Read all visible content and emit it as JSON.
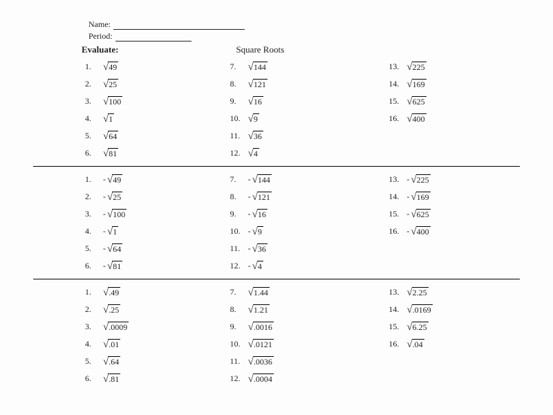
{
  "header": {
    "name_label": "Name:",
    "period_label": "Period:",
    "evaluate_label": "Evaluate:",
    "title": "Square Roots"
  },
  "sections": [
    {
      "col1": [
        {
          "n": "1.",
          "neg": "",
          "rad": "49"
        },
        {
          "n": "2.",
          "neg": "",
          "rad": "25"
        },
        {
          "n": "3.",
          "neg": "",
          "rad": "100"
        },
        {
          "n": "4.",
          "neg": "",
          "rad": "1"
        },
        {
          "n": "5.",
          "neg": "",
          "rad": "64"
        },
        {
          "n": "6.",
          "neg": "",
          "rad": "81"
        }
      ],
      "col2": [
        {
          "n": "7.",
          "neg": "",
          "rad": "144"
        },
        {
          "n": "8.",
          "neg": "",
          "rad": "121"
        },
        {
          "n": "9.",
          "neg": "",
          "rad": "16"
        },
        {
          "n": "10.",
          "neg": "",
          "rad": "9"
        },
        {
          "n": "11.",
          "neg": "",
          "rad": "36"
        },
        {
          "n": "12.",
          "neg": "",
          "rad": "4"
        }
      ],
      "col3": [
        {
          "n": "13.",
          "neg": "",
          "rad": "225"
        },
        {
          "n": "14.",
          "neg": "",
          "rad": "169"
        },
        {
          "n": "15.",
          "neg": "",
          "rad": "625"
        },
        {
          "n": "16.",
          "neg": "",
          "rad": "400"
        }
      ]
    },
    {
      "col1": [
        {
          "n": "1.",
          "neg": "-",
          "rad": "49"
        },
        {
          "n": "2.",
          "neg": "-",
          "rad": "25"
        },
        {
          "n": "3.",
          "neg": "-",
          "rad": "100"
        },
        {
          "n": "4.",
          "neg": "-",
          "rad": "1"
        },
        {
          "n": "5.",
          "neg": "-",
          "rad": "64"
        },
        {
          "n": "6.",
          "neg": "-",
          "rad": "81"
        }
      ],
      "col2": [
        {
          "n": "7.",
          "neg": "-",
          "rad": "144"
        },
        {
          "n": "8.",
          "neg": "-",
          "rad": "121"
        },
        {
          "n": "9.",
          "neg": "-",
          "rad": "16"
        },
        {
          "n": "10.",
          "neg": "-",
          "rad": "9"
        },
        {
          "n": "11.",
          "neg": "-",
          "rad": "36"
        },
        {
          "n": "12.",
          "neg": "-",
          "rad": "4"
        }
      ],
      "col3": [
        {
          "n": "13.",
          "neg": "-",
          "rad": "225"
        },
        {
          "n": "14.",
          "neg": "-",
          "rad": "169"
        },
        {
          "n": "15.",
          "neg": "-",
          "rad": "625"
        },
        {
          "n": "16.",
          "neg": "-",
          "rad": "400"
        }
      ]
    },
    {
      "col1": [
        {
          "n": "1.",
          "neg": "",
          "rad": ".49"
        },
        {
          "n": "2.",
          "neg": "",
          "rad": ".25"
        },
        {
          "n": "3.",
          "neg": "",
          "rad": ".0009"
        },
        {
          "n": "4.",
          "neg": "",
          "rad": ".01"
        },
        {
          "n": "5.",
          "neg": "",
          "rad": ".64"
        },
        {
          "n": "6.",
          "neg": "",
          "rad": ".81"
        }
      ],
      "col2": [
        {
          "n": "7.",
          "neg": "",
          "rad": "1.44"
        },
        {
          "n": "8.",
          "neg": "",
          "rad": "1.21"
        },
        {
          "n": "9.",
          "neg": "",
          "rad": ".0016"
        },
        {
          "n": "10.",
          "neg": "",
          "rad": ".0121"
        },
        {
          "n": "11.",
          "neg": "",
          "rad": ".0036"
        },
        {
          "n": "12.",
          "neg": "",
          "rad": ".0004"
        }
      ],
      "col3": [
        {
          "n": "13.",
          "neg": "",
          "rad": "2.25"
        },
        {
          "n": "14.",
          "neg": "",
          "rad": ".0169"
        },
        {
          "n": "15.",
          "neg": "",
          "rad": "6.25"
        },
        {
          "n": "16.",
          "neg": "",
          "rad": ".04"
        }
      ]
    }
  ]
}
